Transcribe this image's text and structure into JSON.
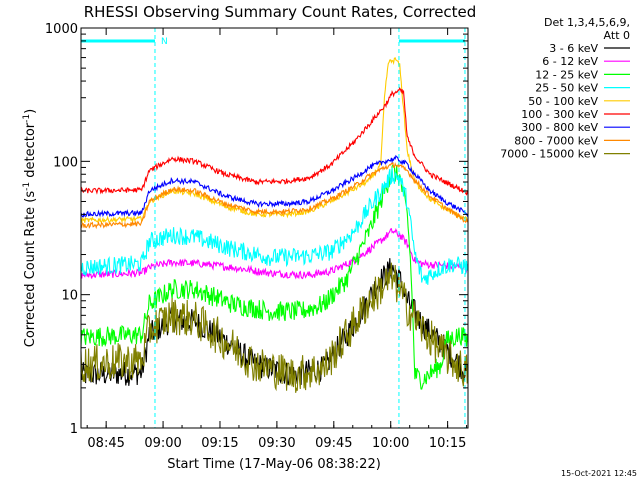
{
  "chart_data": {
    "type": "line",
    "title": "RHESSI Observing Summary Count Rates, Corrected",
    "xlabel": "Start Time (17-May-06 08:38:22)",
    "ylabel": "Corrected Count Rate (s⁻¹ detector⁻¹)",
    "ylabel_main": "Corrected Count Rate (s",
    "ylabel_sup1": "-1",
    "ylabel_mid": " detector",
    "ylabel_sup2": "-1",
    "ylabel_end": ")",
    "yscale": "log",
    "ylim": [
      1,
      1000
    ],
    "xlim_min": [
      0,
      102
    ],
    "x_ticks": [
      {
        "label": "08:45",
        "min": 6.63
      },
      {
        "label": "09:00",
        "min": 21.63
      },
      {
        "label": "09:15",
        "min": 36.63
      },
      {
        "label": "09:30",
        "min": 51.63
      },
      {
        "label": "09:45",
        "min": 66.63
      },
      {
        "label": "10:00",
        "min": 81.63
      },
      {
        "label": "10:15",
        "min": 96.63
      }
    ],
    "y_ticks": [
      {
        "label": "1",
        "value": 1
      },
      {
        "label": "10",
        "value": 10
      },
      {
        "label": "100",
        "value": 100
      },
      {
        "label": "1000",
        "value": 1000
      }
    ],
    "legend_header": [
      "Det 1,3,4,5,6,9,",
      "Att 0"
    ],
    "legend_position": "right",
    "attenuator_flag": "N",
    "vlines_min": [
      19.5,
      83.8,
      101.2
    ],
    "series": [
      {
        "name": "3 - 6 keV",
        "color": "#000000",
        "noise": 0.1,
        "x": [
          0,
          16,
          18,
          24,
          30,
          38,
          46,
          56,
          64,
          72,
          78,
          82,
          84,
          86,
          90,
          96,
          102
        ],
        "y": [
          2.5,
          2.6,
          5,
          6.5,
          6.3,
          4.5,
          3,
          2.5,
          2.8,
          6,
          12,
          16,
          13,
          9,
          6,
          4,
          2.5
        ]
      },
      {
        "name": "6 - 12 keV",
        "color": "#ff00ff",
        "noise": 0.03,
        "x": [
          0,
          16,
          18,
          24,
          32,
          40,
          50,
          60,
          66,
          72,
          78,
          82,
          84,
          86,
          88,
          90,
          102
        ],
        "y": [
          14,
          14.5,
          16,
          17.5,
          17,
          16,
          14.5,
          14,
          15,
          18,
          24,
          30,
          28,
          24,
          18,
          17,
          16
        ]
      },
      {
        "name": "12 - 25 keV",
        "color": "#00ff00",
        "noise": 0.08,
        "x": [
          0,
          16,
          18,
          24,
          30,
          40,
          50,
          58,
          64,
          70,
          76,
          80,
          82,
          84,
          86,
          87,
          88,
          90,
          95,
          96,
          100,
          102
        ],
        "y": [
          4.8,
          5,
          8.5,
          11,
          11,
          8.5,
          7.5,
          7.5,
          8.5,
          13,
          30,
          60,
          85,
          75,
          40,
          15,
          2.5,
          2.3,
          3,
          4.5,
          5,
          4.5
        ]
      },
      {
        "name": "25 - 50 keV",
        "color": "#00ffff",
        "noise": 0.07,
        "x": [
          0,
          16,
          18,
          24,
          30,
          40,
          50,
          60,
          66,
          72,
          76,
          80,
          82,
          84,
          86,
          88,
          90,
          95,
          98,
          102
        ],
        "y": [
          16,
          17,
          25,
          28,
          27,
          22,
          19,
          19.5,
          21,
          30,
          45,
          65,
          80,
          75,
          50,
          20,
          13,
          16,
          17,
          16
        ]
      },
      {
        "name": "50 - 100 keV",
        "color": "#ffcc00",
        "noise": 0.02,
        "x": [
          0,
          16,
          18,
          24,
          30,
          38,
          46,
          54,
          60,
          66,
          72,
          76,
          79,
          80,
          81,
          83,
          84,
          86,
          88,
          92,
          96,
          102
        ],
        "y": [
          36,
          37,
          50,
          60,
          57,
          46,
          40,
          40,
          42,
          50,
          62,
          72,
          95,
          300,
          550,
          580,
          520,
          120,
          70,
          52,
          44,
          36
        ]
      },
      {
        "name": "100 - 300 keV",
        "color": "#ff0000",
        "noise": 0.02,
        "x": [
          0,
          16,
          18,
          24,
          30,
          38,
          46,
          54,
          60,
          66,
          72,
          76,
          80,
          82,
          84,
          85,
          86,
          88,
          92,
          96,
          102
        ],
        "y": [
          60,
          61,
          85,
          105,
          100,
          80,
          70,
          71,
          75,
          95,
          140,
          190,
          260,
          320,
          340,
          330,
          150,
          110,
          80,
          70,
          58
        ]
      },
      {
        "name": "300 - 800 keV",
        "color": "#0000ff",
        "noise": 0.02,
        "x": [
          0,
          16,
          18,
          24,
          30,
          38,
          46,
          54,
          60,
          66,
          72,
          76,
          80,
          83,
          86,
          88,
          92,
          96,
          102
        ],
        "y": [
          40,
          41,
          60,
          72,
          70,
          55,
          48,
          48,
          50,
          60,
          75,
          90,
          100,
          105,
          95,
          80,
          60,
          50,
          40
        ]
      },
      {
        "name": "800 - 7000 keV",
        "color": "#ff8800",
        "noise": 0.02,
        "x": [
          0,
          16,
          18,
          24,
          30,
          38,
          46,
          54,
          60,
          66,
          72,
          76,
          80,
          83,
          86,
          88,
          92,
          96,
          102
        ],
        "y": [
          33,
          34,
          50,
          62,
          60,
          48,
          42,
          42,
          44,
          52,
          65,
          78,
          90,
          95,
          85,
          72,
          55,
          45,
          35
        ]
      },
      {
        "name": "7000 - 15000 keV",
        "color": "#808000",
        "noise": 0.15,
        "x": [
          0,
          16,
          18,
          24,
          30,
          38,
          46,
          56,
          64,
          70,
          76,
          80,
          82,
          84,
          86,
          90,
          96,
          102
        ],
        "y": [
          3,
          3.2,
          5.5,
          7,
          6.5,
          4.5,
          3,
          2.5,
          2.8,
          5,
          9,
          12,
          13,
          11,
          8,
          5.5,
          3.5,
          2.6
        ]
      }
    ],
    "footer_timestamp": "15-Oct-2021 12:45"
  }
}
